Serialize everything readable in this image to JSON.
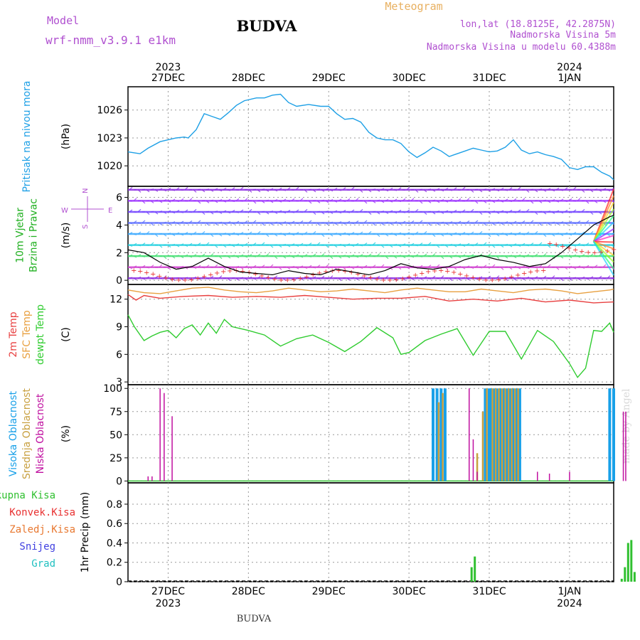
{
  "header": {
    "title": "BUDVA",
    "meteogram": "Meteogram",
    "model_label": "Model",
    "model_name": "wrf-nmm_v3.9.1  e1km",
    "lonlat": "lon,lat (18.8125E, 42.2875N)",
    "elevation": "Nadmorska Visina 5m",
    "model_elevation": "Nadmorska Visina u modelu 60.4388m",
    "watermark": "made by Angel",
    "footer": "BUDVA"
  },
  "time_axis": {
    "top_years": [
      {
        "label": "2023",
        "at": 0.5
      },
      {
        "label": "2024",
        "at": 5.5
      }
    ],
    "days": [
      "27DEC",
      "28DEC",
      "29DEC",
      "30DEC",
      "31DEC",
      "1JAN"
    ],
    "bottom_years": [
      {
        "label": "2023",
        "at": 0.5
      },
      {
        "label": "2024",
        "at": 5.5
      }
    ]
  },
  "colors": {
    "pressure": "#1ea0e6",
    "temp2m": "#e84040",
    "sfc_temp": "#e8a040",
    "dewpoint": "#30cc30",
    "high_cloud": "#18a0e8",
    "mid_cloud": "#c8a040",
    "low_cloud": "#c010a0",
    "precip_total": "#30c030",
    "precip_conv": "#e83030",
    "precip_frozen": "#e87830",
    "snow": "#4040e0",
    "grad": "#20c0c0",
    "wind_label_green": "#20b020",
    "purple": "#b050d0"
  },
  "chart_data": [
    {
      "type": "line",
      "panel": "pressure",
      "ylabel": "(hPa)",
      "side_labels": [
        "Pritisak na nivou mora"
      ],
      "yticks": [
        1020,
        1023,
        1026
      ],
      "ylim": [
        1017.8,
        1028.5
      ],
      "series": [
        {
          "name": "Pritisak na nivou mora",
          "x": [
            -0.5,
            -0.42,
            -0.35,
            -0.25,
            -0.1,
            0,
            0.1,
            0.2,
            0.25,
            0.35,
            0.45,
            0.55,
            0.65,
            0.75,
            0.85,
            0.95,
            1.1,
            1.2,
            1.3,
            1.4,
            1.5,
            1.6,
            1.75,
            1.9,
            2.0,
            2.1,
            2.2,
            2.3,
            2.4,
            2.5,
            2.6,
            2.7,
            2.8,
            2.9,
            3.0,
            3.1,
            3.2,
            3.3,
            3.4,
            3.5,
            3.6,
            3.7,
            3.8,
            3.9,
            4.0,
            4.1,
            4.2,
            4.3,
            4.4,
            4.5,
            4.6,
            4.7,
            4.8,
            4.9,
            5.0,
            5.1,
            5.2,
            5.3,
            5.4,
            5.5,
            5.6
          ],
          "y": [
            1021.5,
            1021.4,
            1021.3,
            1021.9,
            1022.6,
            1022.8,
            1023.0,
            1023.1,
            1023.0,
            1023.9,
            1025.6,
            1025.3,
            1025.0,
            1025.7,
            1026.5,
            1027.0,
            1027.3,
            1027.3,
            1027.6,
            1027.7,
            1026.8,
            1026.4,
            1026.6,
            1026.4,
            1026.4,
            1025.6,
            1025.0,
            1025.1,
            1024.7,
            1023.6,
            1023.0,
            1022.8,
            1022.8,
            1022.4,
            1021.5,
            1020.9,
            1021.4,
            1022.0,
            1021.6,
            1021.0,
            1021.3,
            1021.6,
            1021.9,
            1021.7,
            1021.5,
            1021.6,
            1022.0,
            1022.8,
            1021.7,
            1021.3,
            1021.5,
            1021.2,
            1021.0,
            1020.7,
            1019.8,
            1019.6,
            1019.9,
            1019.9,
            1019.3,
            1018.9,
            1018.5
          ]
        }
      ]
    },
    {
      "type": "line",
      "panel": "wind",
      "ylabel": "(m/s)",
      "side_labels": [
        "10m Vjetar",
        "Brzina i Pravac"
      ],
      "compass": [
        "N",
        "S",
        "W",
        "E"
      ],
      "yticks": [
        0,
        2,
        4,
        6
      ],
      "ylim": [
        -0.3,
        6.8
      ],
      "series": [
        {
          "name": "10m Vjetar",
          "x": [
            -0.5,
            -0.3,
            -0.1,
            0.1,
            0.3,
            0.5,
            0.7,
            0.9,
            1.1,
            1.3,
            1.5,
            1.7,
            1.9,
            2.1,
            2.3,
            2.5,
            2.7,
            2.9,
            3.1,
            3.3,
            3.5,
            3.7,
            3.9,
            4.1,
            4.3,
            4.5,
            4.7,
            4.9,
            5.1,
            5.3,
            5.5,
            5.6
          ],
          "y": [
            2.2,
            2.0,
            1.3,
            0.8,
            1.0,
            1.6,
            1.0,
            0.6,
            0.5,
            0.4,
            0.7,
            0.5,
            0.4,
            0.8,
            0.6,
            0.4,
            0.7,
            1.2,
            0.9,
            0.8,
            1.0,
            1.5,
            1.8,
            1.5,
            1.3,
            1.0,
            1.2,
            2.0,
            3.0,
            4.0,
            4.6,
            4.7
          ]
        }
      ]
    },
    {
      "type": "line",
      "panel": "temperature",
      "ylabel": "(C)",
      "side_labels": [
        "2m Temp",
        "SFC Temp",
        "dewpt Temp"
      ],
      "yticks": [
        3,
        6,
        9,
        12
      ],
      "ylim": [
        2.7,
        13.6
      ],
      "series": [
        {
          "name": "2m Temp",
          "x": [
            -0.5,
            -0.4,
            -0.3,
            -0.1,
            0.2,
            0.5,
            0.8,
            1.1,
            1.4,
            1.7,
            2.0,
            2.3,
            2.6,
            2.9,
            3.2,
            3.5,
            3.8,
            4.1,
            4.4,
            4.7,
            5.0,
            5.3,
            5.6
          ],
          "y": [
            12.5,
            11.9,
            12.4,
            12.1,
            12.3,
            12.4,
            12.2,
            12.3,
            12.2,
            12.4,
            12.2,
            12.0,
            12.1,
            12.1,
            12.3,
            11.8,
            12.0,
            11.8,
            12.1,
            11.7,
            11.9,
            11.6,
            11.7
          ]
        },
        {
          "name": "SFC Temp",
          "x": [
            -0.5,
            -0.3,
            -0.1,
            0.1,
            0.3,
            0.5,
            0.7,
            0.9,
            1.1,
            1.3,
            1.5,
            1.7,
            1.9,
            2.1,
            2.3,
            2.5,
            2.7,
            2.9,
            3.1,
            3.3,
            3.5,
            3.7,
            3.9,
            4.1,
            4.3,
            4.5,
            4.7,
            4.9,
            5.1,
            5.3,
            5.5,
            5.6
          ],
          "y": [
            13.0,
            12.7,
            12.6,
            12.9,
            13.2,
            13.3,
            13.0,
            12.8,
            12.7,
            12.9,
            13.2,
            13.0,
            12.8,
            12.9,
            13.1,
            12.9,
            12.7,
            13.0,
            13.2,
            13.0,
            12.8,
            12.8,
            13.1,
            12.9,
            12.7,
            13.0,
            13.1,
            12.9,
            12.6,
            12.8,
            13.0,
            13.1
          ]
        },
        {
          "name": "dewpt Temp",
          "x": [
            -0.5,
            -0.42,
            -0.3,
            -0.2,
            -0.1,
            0.0,
            0.1,
            0.2,
            0.3,
            0.4,
            0.5,
            0.6,
            0.7,
            0.8,
            0.9,
            1.0,
            1.2,
            1.4,
            1.6,
            1.8,
            2.0,
            2.2,
            2.4,
            2.6,
            2.8,
            2.9,
            3.0,
            3.2,
            3.4,
            3.6,
            3.8,
            4.0,
            4.2,
            4.4,
            4.6,
            4.8,
            5.0,
            5.1,
            5.2,
            5.3,
            5.4,
            5.5,
            5.6
          ],
          "y": [
            10.3,
            9.0,
            7.5,
            8.0,
            8.4,
            8.6,
            7.8,
            8.8,
            9.2,
            8.1,
            9.4,
            8.3,
            9.8,
            9.0,
            8.8,
            8.6,
            8.1,
            6.9,
            7.7,
            8.1,
            7.3,
            6.3,
            7.4,
            8.9,
            7.8,
            6.0,
            6.2,
            7.5,
            8.2,
            8.8,
            5.9,
            8.5,
            8.5,
            5.5,
            8.6,
            7.4,
            5.0,
            3.5,
            4.5,
            8.6,
            8.5,
            9.4,
            8.4
          ]
        }
      ]
    },
    {
      "type": "bar",
      "panel": "cloud",
      "ylabel": "(%)",
      "side_labels": [
        "Visoka Oblacnost",
        "Srednja Oblacnost",
        "Niska Oblacnost"
      ],
      "yticks": [
        0,
        25,
        50,
        75,
        100
      ],
      "ylim": [
        -2,
        104
      ],
      "series": [
        {
          "name": "Visoka Oblacnost",
          "x": [
            3.3,
            3.35,
            3.4,
            3.45,
            3.95,
            4.0,
            4.02,
            4.06,
            4.1,
            4.14,
            4.18,
            4.22,
            4.26,
            4.3,
            4.34,
            4.38,
            5.5,
            5.55
          ],
          "values": [
            100,
            100,
            100,
            100,
            100,
            100,
            100,
            100,
            100,
            100,
            100,
            100,
            100,
            100,
            100,
            100,
            100,
            100
          ]
        },
        {
          "name": "Srednja Oblacnost",
          "x": [
            3.37,
            3.42,
            3.85,
            3.92,
            3.97,
            4.04,
            4.08,
            4.12,
            4.16,
            4.2,
            4.24,
            4.28,
            4.32,
            4.36
          ],
          "values": [
            85,
            95,
            30,
            75,
            100,
            100,
            100,
            100,
            100,
            100,
            100,
            100,
            100,
            100
          ]
        },
        {
          "name": "Niska Oblacnost",
          "x": [
            -0.25,
            -0.2,
            -0.1,
            -0.05,
            0.05,
            3.75,
            3.8,
            3.85,
            4.6,
            4.75,
            5.0,
            5.67,
            5.7
          ],
          "values": [
            5,
            5,
            100,
            95,
            70,
            100,
            45,
            10,
            10,
            8,
            10,
            75,
            75
          ]
        }
      ]
    },
    {
      "type": "bar",
      "panel": "precip",
      "ylabel": "1hr Precip (mm)",
      "side_labels": [
        "Ukupna Kisa",
        "Konvek.Kisa",
        "Zaledj.Kisa",
        "Snijeg",
        "Grad"
      ],
      "yticks": [
        0,
        0.2,
        0.4,
        0.6,
        0.8
      ],
      "ylim": [
        0,
        1.02
      ],
      "series": [
        {
          "name": "Ukupna Kisa",
          "x": [
            3.78,
            3.82,
            5.65,
            5.69,
            5.73,
            5.77,
            5.81
          ],
          "values": [
            0.15,
            0.26,
            0.03,
            0.15,
            0.4,
            0.43,
            0.1
          ]
        }
      ]
    }
  ]
}
